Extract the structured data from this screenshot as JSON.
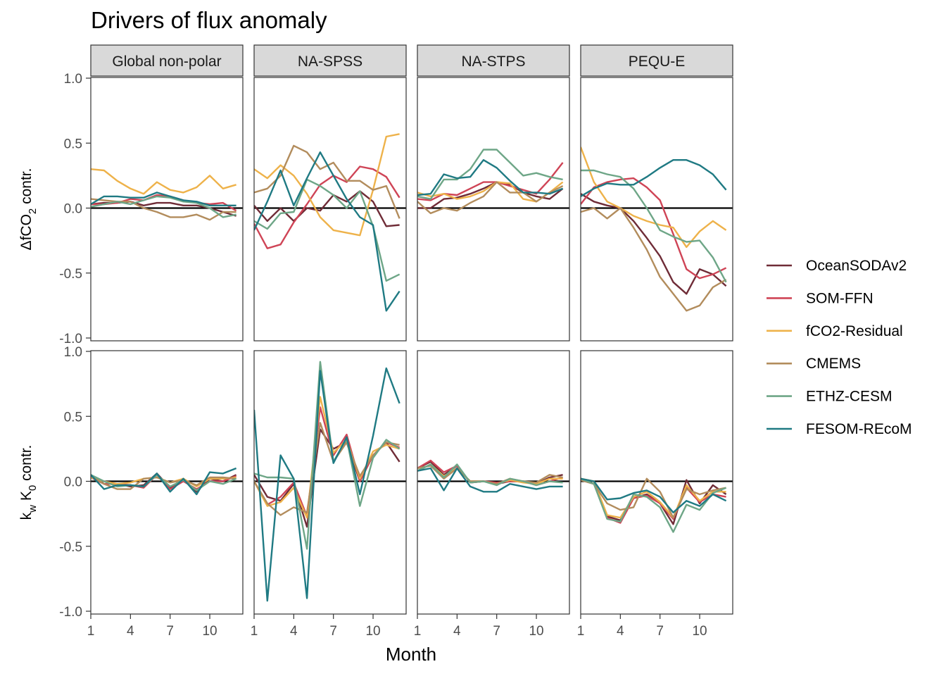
{
  "chart_data": {
    "type": "line",
    "title": "Drivers of flux anomaly",
    "xlabel": "Month",
    "panels": [
      "Global non-polar",
      "NA-SPSS",
      "NA-STPS",
      "PEQU-E"
    ],
    "rows": [
      {
        "ylabel_parts": [
          "ΔfCO",
          "2",
          " contr."
        ]
      },
      {
        "ylabel_parts": [
          "k",
          "w",
          " K",
          "0",
          " contr."
        ]
      }
    ],
    "x": [
      1,
      2,
      3,
      4,
      5,
      6,
      7,
      8,
      9,
      10,
      11,
      12
    ],
    "xlim": [
      1,
      12.5
    ],
    "ylim": [
      -1.0,
      1.0
    ],
    "xticks": [
      1,
      4,
      7,
      10
    ],
    "yticks": [
      -1.0,
      -0.5,
      0.0,
      0.5,
      1.0
    ],
    "ytick_labels": [
      "-1.0",
      "-0.5",
      "0.0",
      "0.5",
      "1.0"
    ],
    "hline": 0,
    "legend_position": "right",
    "series": [
      {
        "name": "OceanSODAv2",
        "color": "#6f2c37",
        "values": [
          [
            [
              0.03,
              0.04,
              0.04,
              0.05,
              0.02,
              0.04,
              0.04,
              0.02,
              0.02,
              0.0,
              -0.03,
              -0.06
            ],
            [
              0.02,
              -0.1,
              0.0,
              -0.1,
              0.0,
              -0.02,
              0.1,
              0.05,
              0.13,
              0.05,
              -0.14,
              -0.13
            ],
            [
              0.0,
              0.0,
              0.07,
              0.08,
              0.11,
              0.15,
              0.2,
              0.18,
              0.12,
              0.09,
              0.07,
              0.15
            ],
            [
              0.11,
              0.05,
              0.02,
              0.0,
              -0.1,
              -0.23,
              -0.37,
              -0.57,
              -0.66,
              -0.47,
              -0.51,
              -0.6
            ]
          ],
          [
            [
              0.05,
              -0.02,
              -0.02,
              -0.04,
              -0.03,
              0.06,
              -0.05,
              0.02,
              -0.08,
              0.02,
              0.0,
              0.05
            ],
            [
              0.05,
              -0.12,
              -0.15,
              -0.02,
              -0.35,
              0.4,
              0.25,
              0.3,
              0.0,
              0.2,
              0.3,
              0.15
            ],
            [
              0.1,
              0.15,
              0.05,
              0.12,
              -0.01,
              0.0,
              -0.02,
              0.0,
              0.0,
              -0.02,
              0.03,
              0.05
            ],
            [
              0.02,
              0.0,
              -0.27,
              -0.3,
              -0.13,
              -0.1,
              -0.17,
              -0.33,
              0.01,
              -0.17,
              -0.03,
              -0.1
            ]
          ]
        ]
      },
      {
        "name": "SOM-FFN",
        "color": "#cf4456",
        "values": [
          [
            [
              0.03,
              0.03,
              0.04,
              0.07,
              0.06,
              0.1,
              0.09,
              0.06,
              0.04,
              0.03,
              0.04,
              -0.02
            ],
            [
              -0.12,
              -0.31,
              -0.28,
              -0.11,
              0.03,
              0.18,
              0.25,
              0.2,
              0.32,
              0.3,
              0.24,
              0.08
            ],
            [
              0.07,
              0.06,
              0.11,
              0.1,
              0.15,
              0.2,
              0.2,
              0.17,
              0.14,
              0.11,
              0.22,
              0.35
            ],
            [
              0.03,
              0.16,
              0.2,
              0.22,
              0.23,
              0.16,
              0.06,
              -0.2,
              -0.47,
              -0.54,
              -0.51,
              -0.46
            ]
          ],
          [
            [
              0.03,
              -0.02,
              -0.02,
              -0.03,
              -0.05,
              0.05,
              -0.06,
              0.0,
              -0.06,
              0.0,
              0.0,
              0.04
            ],
            [
              0.0,
              -0.18,
              -0.12,
              -0.01,
              -0.27,
              0.57,
              0.2,
              0.36,
              0.0,
              0.2,
              0.3,
              0.26
            ],
            [
              0.1,
              0.16,
              0.07,
              0.12,
              -0.01,
              0.0,
              -0.01,
              0.0,
              0.0,
              -0.03,
              0.0,
              0.03
            ],
            [
              0.01,
              -0.02,
              -0.28,
              -0.32,
              -0.13,
              -0.11,
              -0.17,
              -0.29,
              -0.05,
              -0.16,
              -0.1,
              -0.12
            ]
          ]
        ]
      },
      {
        "name": "fCO2-Residual",
        "color": "#eeb24a",
        "values": [
          [
            [
              0.3,
              0.29,
              0.21,
              0.15,
              0.11,
              0.2,
              0.14,
              0.12,
              0.16,
              0.25,
              0.15,
              0.18
            ],
            [
              0.3,
              0.23,
              0.33,
              0.25,
              0.11,
              -0.07,
              -0.17,
              -0.19,
              -0.21,
              0.14,
              0.55,
              0.57
            ],
            [
              0.12,
              0.09,
              0.11,
              0.07,
              0.09,
              0.13,
              0.2,
              0.19,
              0.07,
              0.05,
              0.12,
              0.2
            ],
            [
              0.47,
              0.2,
              0.05,
              0.0,
              -0.06,
              -0.1,
              -0.13,
              -0.15,
              -0.3,
              -0.18,
              -0.1,
              -0.17
            ]
          ],
          [
            [
              0.03,
              0.0,
              -0.02,
              -0.01,
              0.02,
              0.03,
              -0.01,
              0.02,
              -0.04,
              0.02,
              0.02,
              0.03
            ],
            [
              0.0,
              -0.19,
              -0.16,
              -0.05,
              -0.28,
              0.65,
              0.22,
              0.32,
              0.02,
              0.23,
              0.28,
              0.25
            ],
            [
              0.08,
              0.13,
              0.04,
              0.1,
              0.0,
              0.0,
              -0.02,
              0.01,
              -0.01,
              -0.02,
              0.02,
              0.02
            ],
            [
              0.02,
              0.0,
              -0.26,
              -0.28,
              -0.12,
              -0.08,
              -0.16,
              -0.28,
              -0.03,
              -0.15,
              -0.08,
              -0.08
            ]
          ]
        ]
      },
      {
        "name": "CMEMS",
        "color": "#b28c5c",
        "values": [
          [
            [
              0.07,
              0.06,
              0.05,
              0.05,
              0.0,
              -0.03,
              -0.07,
              -0.07,
              -0.05,
              -0.09,
              -0.03,
              -0.03
            ],
            [
              0.12,
              0.15,
              0.25,
              0.48,
              0.43,
              0.3,
              0.35,
              0.21,
              0.21,
              0.14,
              0.17,
              -0.08
            ],
            [
              0.05,
              -0.04,
              0.0,
              -0.02,
              0.04,
              0.09,
              0.2,
              0.12,
              0.12,
              0.05,
              0.12,
              0.17
            ],
            [
              -0.03,
              0.0,
              -0.08,
              0.0,
              -0.15,
              -0.32,
              -0.53,
              -0.66,
              -0.79,
              -0.75,
              -0.61,
              -0.55
            ]
          ],
          [
            [
              0.04,
              -0.02,
              -0.06,
              -0.06,
              0.02,
              0.03,
              -0.01,
              0.01,
              -0.03,
              0.03,
              0.03,
              0.02
            ],
            [
              0.0,
              -0.17,
              -0.26,
              -0.2,
              -0.24,
              0.45,
              0.15,
              0.3,
              0.04,
              0.2,
              0.3,
              0.28
            ],
            [
              0.1,
              0.12,
              0.02,
              0.1,
              0.0,
              0.0,
              -0.02,
              0.02,
              0.0,
              -0.01,
              0.05,
              0.03
            ],
            [
              0.01,
              -0.02,
              -0.17,
              -0.22,
              -0.2,
              0.02,
              -0.08,
              -0.28,
              -0.06,
              -0.1,
              -0.07,
              -0.05
            ]
          ]
        ]
      },
      {
        "name": "ETHZ-CESM",
        "color": "#6ea687",
        "values": [
          [
            [
              0.01,
              0.03,
              0.05,
              0.03,
              0.06,
              0.09,
              0.08,
              0.05,
              0.04,
              0.0,
              -0.07,
              -0.05
            ],
            [
              -0.1,
              -0.16,
              -0.04,
              -0.03,
              0.22,
              0.17,
              0.1,
              0.0,
              0.13,
              -0.14,
              -0.56,
              -0.51
            ],
            [
              0.09,
              0.07,
              0.22,
              0.22,
              0.3,
              0.45,
              0.45,
              0.35,
              0.25,
              0.27,
              0.24,
              0.22
            ],
            [
              0.29,
              0.29,
              0.26,
              0.24,
              0.15,
              0.0,
              -0.17,
              -0.22,
              -0.26,
              -0.25,
              -0.38,
              -0.57
            ]
          ],
          [
            [
              0.05,
              0.0,
              -0.04,
              -0.03,
              -0.04,
              0.05,
              -0.04,
              0.01,
              -0.07,
              0.0,
              -0.02,
              0.02
            ],
            [
              0.06,
              0.03,
              0.03,
              0.02,
              -0.52,
              0.92,
              0.15,
              0.33,
              -0.19,
              0.18,
              0.32,
              0.25
            ],
            [
              0.08,
              0.13,
              0.03,
              0.13,
              -0.01,
              0.0,
              -0.03,
              0.02,
              0.0,
              -0.03,
              0.0,
              -0.01
            ],
            [
              0.02,
              -0.02,
              -0.29,
              -0.31,
              -0.1,
              -0.12,
              -0.2,
              -0.39,
              -0.18,
              -0.22,
              -0.09,
              -0.05
            ]
          ]
        ]
      },
      {
        "name": "FESOM-REcoM",
        "color": "#1f7a83",
        "values": [
          [
            [
              0.03,
              0.09,
              0.09,
              0.08,
              0.08,
              0.12,
              0.09,
              0.06,
              0.05,
              0.02,
              0.02,
              0.02
            ],
            [
              -0.17,
              0.05,
              0.29,
              0.02,
              0.23,
              0.43,
              0.25,
              0.07,
              -0.07,
              -0.13,
              -0.79,
              -0.64
            ],
            [
              0.1,
              0.11,
              0.26,
              0.23,
              0.24,
              0.37,
              0.31,
              0.21,
              0.12,
              0.12,
              0.11,
              0.15
            ],
            [
              0.09,
              0.15,
              0.19,
              0.18,
              0.18,
              0.24,
              0.31,
              0.37,
              0.37,
              0.33,
              0.26,
              0.14
            ]
          ],
          [
            [
              0.05,
              -0.06,
              -0.03,
              -0.03,
              -0.04,
              0.06,
              -0.08,
              0.02,
              -0.1,
              0.07,
              0.06,
              0.1
            ],
            [
              0.55,
              -0.92,
              0.2,
              0.02,
              -0.9,
              0.85,
              0.14,
              0.34,
              -0.1,
              0.35,
              0.87,
              0.6
            ],
            [
              0.08,
              0.1,
              -0.07,
              0.1,
              -0.04,
              -0.08,
              -0.08,
              -0.02,
              -0.04,
              -0.06,
              -0.04,
              -0.04
            ],
            [
              0.02,
              0.0,
              -0.14,
              -0.13,
              -0.09,
              -0.07,
              -0.12,
              -0.24,
              -0.15,
              -0.19,
              -0.1,
              -0.15
            ]
          ]
        ]
      }
    ]
  }
}
